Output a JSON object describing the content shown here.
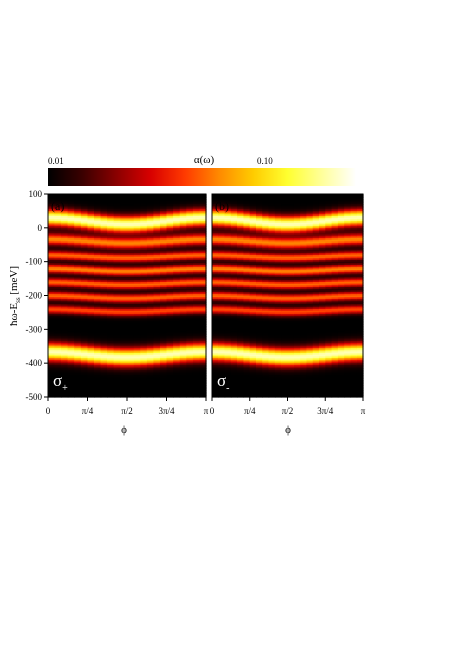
{
  "colorbar": {
    "title": "α(ω)",
    "tick_min": "0.01",
    "tick_mid": "0.10",
    "stops": [
      "#000000",
      "#3a0000",
      "#8a0000",
      "#d80000",
      "#ff3a00",
      "#ff8a00",
      "#ffcc00",
      "#ffff30",
      "#ffff9a",
      "#ffffff"
    ]
  },
  "chart_data": [
    {
      "type": "heatmap",
      "panel_label": "(a)",
      "polarization_label": "σ",
      "polarization_sub": "+",
      "xlabel": "ϕ",
      "ylabel": "ħω-E",
      "ylabel_sub": "ss",
      "ylabel_unit": " [meV]",
      "xlim": [
        0,
        3.1416
      ],
      "ylim": [
        -500,
        100
      ],
      "x_ticks": [
        {
          "value": 0,
          "label": "0"
        },
        {
          "value": 0.7854,
          "label": "π/4"
        },
        {
          "value": 1.5708,
          "label": "π/2"
        },
        {
          "value": 2.3562,
          "label": "3π/4"
        },
        {
          "value": 3.1416,
          "label": "π"
        }
      ],
      "y_ticks": [
        100,
        0,
        -100,
        -200,
        -300,
        -400,
        -500
      ],
      "bands": [
        {
          "center": 20,
          "width": 22,
          "strength": 1.0,
          "bow": 10
        },
        {
          "center": -40,
          "width": 16,
          "strength": 0.55,
          "bow": 6
        },
        {
          "center": -85,
          "width": 12,
          "strength": 0.5,
          "bow": 4
        },
        {
          "center": -125,
          "width": 12,
          "strength": 0.55,
          "bow": 4
        },
        {
          "center": -165,
          "width": 12,
          "strength": 0.5,
          "bow": 4
        },
        {
          "center": -205,
          "width": 12,
          "strength": 0.5,
          "bow": 4
        },
        {
          "center": -245,
          "width": 12,
          "strength": 0.45,
          "bow": 4
        },
        {
          "center": -375,
          "width": 24,
          "strength": 1.0,
          "bow": 8
        }
      ]
    },
    {
      "type": "heatmap",
      "panel_label": "(b)",
      "polarization_label": "σ",
      "polarization_sub": "-",
      "xlabel": "ϕ",
      "xlim": [
        0,
        3.1416
      ],
      "ylim": [
        -500,
        100
      ],
      "x_ticks": [
        {
          "value": 0,
          "label": "0"
        },
        {
          "value": 0.7854,
          "label": "π/4"
        },
        {
          "value": 1.5708,
          "label": "π/2"
        },
        {
          "value": 2.3562,
          "label": "3π/4"
        },
        {
          "value": 3.1416,
          "label": "π"
        }
      ],
      "bands": [
        {
          "center": 20,
          "width": 22,
          "strength": 1.0,
          "bow": 10
        },
        {
          "center": -40,
          "width": 16,
          "strength": 0.55,
          "bow": 6
        },
        {
          "center": -85,
          "width": 12,
          "strength": 0.5,
          "bow": 4
        },
        {
          "center": -125,
          "width": 12,
          "strength": 0.55,
          "bow": 4
        },
        {
          "center": -165,
          "width": 12,
          "strength": 0.5,
          "bow": 4
        },
        {
          "center": -205,
          "width": 12,
          "strength": 0.5,
          "bow": 4
        },
        {
          "center": -245,
          "width": 12,
          "strength": 0.45,
          "bow": 4
        },
        {
          "center": -375,
          "width": 24,
          "strength": 1.0,
          "bow": 8
        }
      ]
    }
  ]
}
